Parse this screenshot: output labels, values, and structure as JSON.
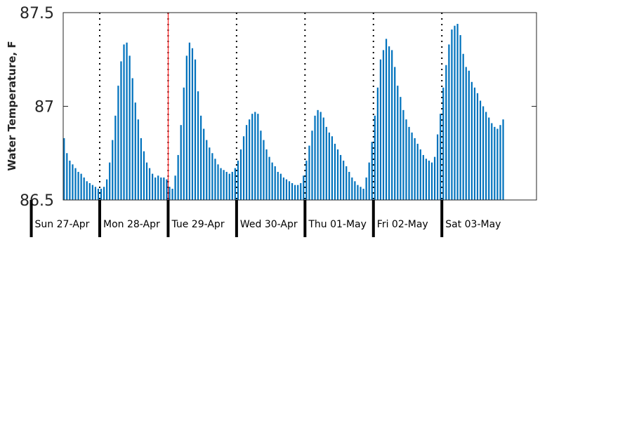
{
  "chart_data": {
    "type": "bar",
    "title": "",
    "xlabel": "",
    "ylabel": "Water Temperature, F",
    "ylim": [
      86.5,
      87.5
    ],
    "yticks": [
      "86.5",
      "87",
      "87.5"
    ],
    "grid": false,
    "legend": "none",
    "bar_color": "#0072BD",
    "day_divider_color": "#000000",
    "marker_color": "#FF0000",
    "x_start": "2025-04-27 00:00",
    "x_end": "2025-05-03 23:00",
    "interval_hours": 1,
    "day_labels": [
      "Sun 27-Apr",
      "Mon 28-Apr",
      "Tue 29-Apr",
      "Wed 30-Apr",
      "Thu 01-May",
      "Fri 02-May",
      "Sat 03-May"
    ],
    "marker_time": "2025-04-28 24:00",
    "values": [
      86.55,
      86.56,
      86.58,
      86.62,
      86.68,
      86.71,
      86.79,
      86.86,
      86.92,
      86.93,
      86.89,
      86.83,
      86.75,
      86.71,
      86.69,
      86.67,
      86.65,
      86.64,
      86.62,
      86.6,
      86.59,
      86.58,
      86.57,
      86.56,
      86.56,
      86.57,
      86.61,
      86.7,
      86.82,
      86.95,
      87.11,
      87.24,
      87.33,
      87.34,
      87.27,
      87.15,
      87.02,
      86.93,
      86.83,
      86.76,
      86.7,
      86.67,
      86.64,
      86.62,
      86.63,
      86.62,
      86.62,
      86.61,
      86.57,
      86.56,
      86.63,
      86.74,
      86.9,
      87.1,
      87.27,
      87.34,
      87.31,
      87.25,
      87.08,
      86.95,
      86.88,
      86.82,
      86.78,
      86.75,
      86.72,
      86.69,
      86.67,
      86.66,
      86.65,
      86.64,
      86.65,
      86.67,
      86.71,
      86.77,
      86.84,
      86.9,
      86.93,
      86.96,
      86.97,
      86.96,
      86.87,
      86.82,
      86.77,
      86.73,
      86.7,
      86.68,
      86.65,
      86.64,
      86.62,
      86.61,
      86.6,
      86.59,
      86.58,
      86.58,
      86.59,
      86.63,
      86.71,
      86.79,
      86.87,
      86.95,
      86.98,
      86.97,
      86.94,
      86.89,
      86.86,
      86.84,
      86.8,
      86.77,
      86.74,
      86.71,
      86.68,
      86.65,
      86.62,
      86.6,
      86.58,
      86.57,
      86.56,
      86.62,
      86.7,
      86.81,
      86.95,
      87.1,
      87.25,
      87.3,
      87.36,
      87.32,
      87.3,
      87.21,
      87.11,
      87.05,
      86.98,
      86.93,
      86.89,
      86.86,
      86.83,
      86.8,
      86.77,
      86.74,
      86.72,
      86.71,
      86.7,
      86.73,
      86.85,
      86.96,
      87.1,
      87.22,
      87.33,
      87.41,
      87.43,
      87.44,
      87.38,
      87.28,
      87.21,
      87.19,
      87.13,
      87.1,
      87.07,
      87.03,
      87.0,
      86.97,
      86.94,
      86.91,
      86.89,
      86.88,
      86.9,
      86.93
    ]
  }
}
